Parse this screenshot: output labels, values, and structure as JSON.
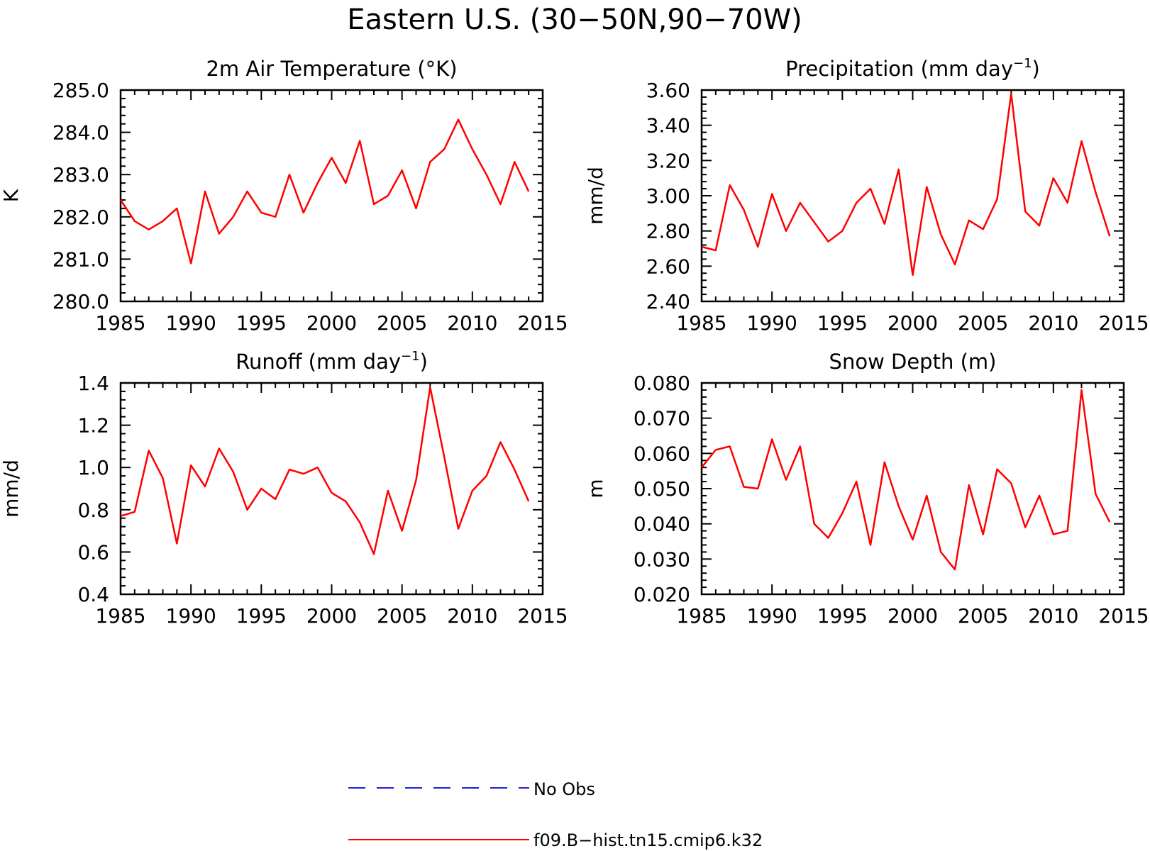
{
  "figure": {
    "title": "Eastern U.S. (30−50N,90−70W)"
  },
  "legend": [
    {
      "label": "No Obs",
      "color": "#1f1fd6",
      "style": "dashed"
    },
    {
      "label": "f09.B−hist.tn15.cmip6.k32",
      "color": "#ff0000",
      "style": "solid"
    }
  ],
  "chart_data": [
    {
      "type": "line",
      "title_main": "2m Air Temperature (°K)",
      "title_sup": "",
      "title_tail": "",
      "ylabel": "K",
      "xlim": [
        1985,
        2015
      ],
      "ylim": [
        280,
        285
      ],
      "x_ticks": [
        1985,
        1990,
        1995,
        2000,
        2005,
        2010,
        2015
      ],
      "y_ticks": [
        "280.0",
        "281.0",
        "282.0",
        "283.0",
        "284.0",
        "285.0"
      ],
      "y_tick_values": [
        280,
        281,
        282,
        283,
        284,
        285
      ],
      "x": [
        1985,
        1986,
        1987,
        1988,
        1989,
        1990,
        1991,
        1992,
        1993,
        1994,
        1995,
        1996,
        1997,
        1998,
        1999,
        2000,
        2001,
        2002,
        2003,
        2004,
        2005,
        2006,
        2007,
        2008,
        2009,
        2010,
        2011,
        2012,
        2013,
        2014
      ],
      "series": [
        {
          "name": "f09.B−hist.tn15.cmip6.k32",
          "color": "#ff0000",
          "values": [
            282.4,
            281.9,
            281.7,
            281.9,
            282.2,
            280.9,
            282.6,
            281.6,
            282.0,
            282.6,
            282.1,
            282.0,
            283.0,
            282.1,
            282.8,
            283.4,
            282.8,
            283.8,
            282.3,
            282.5,
            283.1,
            282.2,
            283.3,
            283.6,
            284.3,
            283.6,
            283.0,
            282.3,
            283.3,
            282.6
          ]
        }
      ]
    },
    {
      "type": "line",
      "title_main": "Precipitation (mm day",
      "title_sup": "−1",
      "title_tail": ")",
      "ylabel": "mm/d",
      "xlim": [
        1985,
        2015
      ],
      "ylim": [
        2.4,
        3.6
      ],
      "x_ticks": [
        1985,
        1990,
        1995,
        2000,
        2005,
        2010,
        2015
      ],
      "y_ticks": [
        "2.40",
        "2.60",
        "2.80",
        "3.00",
        "3.20",
        "3.40",
        "3.60"
      ],
      "y_tick_values": [
        2.4,
        2.6,
        2.8,
        3.0,
        3.2,
        3.4,
        3.6
      ],
      "x": [
        1985,
        1986,
        1987,
        1988,
        1989,
        1990,
        1991,
        1992,
        1993,
        1994,
        1995,
        1996,
        1997,
        1998,
        1999,
        2000,
        2001,
        2002,
        2003,
        2004,
        2005,
        2006,
        2007,
        2008,
        2009,
        2010,
        2011,
        2012,
        2013,
        2014
      ],
      "series": [
        {
          "name": "f09.B−hist.tn15.cmip6.k32",
          "color": "#ff0000",
          "values": [
            2.71,
            2.69,
            3.06,
            2.92,
            2.71,
            3.01,
            2.8,
            2.96,
            2.85,
            2.74,
            2.8,
            2.96,
            3.04,
            2.84,
            3.15,
            2.55,
            3.05,
            2.78,
            2.61,
            2.86,
            2.81,
            2.98,
            3.58,
            2.91,
            2.83,
            3.1,
            2.96,
            3.31,
            3.02,
            2.77
          ]
        }
      ]
    },
    {
      "type": "line",
      "title_main": "Runoff (mm day",
      "title_sup": "−1",
      "title_tail": ")",
      "ylabel": "mm/d",
      "xlim": [
        1985,
        2015
      ],
      "ylim": [
        0.4,
        1.4
      ],
      "x_ticks": [
        1985,
        1990,
        1995,
        2000,
        2005,
        2010,
        2015
      ],
      "y_ticks": [
        "0.4",
        "0.6",
        "0.8",
        "1.0",
        "1.2",
        "1.4"
      ],
      "y_tick_values": [
        0.4,
        0.6,
        0.8,
        1.0,
        1.2,
        1.4
      ],
      "x": [
        1985,
        1986,
        1987,
        1988,
        1989,
        1990,
        1991,
        1992,
        1993,
        1994,
        1995,
        1996,
        1997,
        1998,
        1999,
        2000,
        2001,
        2002,
        2003,
        2004,
        2005,
        2006,
        2007,
        2008,
        2009,
        2010,
        2011,
        2012,
        2013,
        2014
      ],
      "series": [
        {
          "name": "f09.B−hist.tn15.cmip6.k32",
          "color": "#ff0000",
          "values": [
            0.77,
            0.79,
            1.08,
            0.95,
            0.64,
            1.01,
            0.91,
            1.09,
            0.98,
            0.8,
            0.9,
            0.85,
            0.99,
            0.97,
            1.0,
            0.88,
            0.84,
            0.74,
            0.59,
            0.89,
            0.7,
            0.94,
            1.38,
            1.05,
            0.71,
            0.89,
            0.96,
            1.12,
            0.99,
            0.84
          ]
        }
      ]
    },
    {
      "type": "line",
      "title_main": "Snow Depth (m)",
      "title_sup": "",
      "title_tail": "",
      "ylabel": "m",
      "xlim": [
        1985,
        2015
      ],
      "ylim": [
        0.02,
        0.08
      ],
      "x_ticks": [
        1985,
        1990,
        1995,
        2000,
        2005,
        2010,
        2015
      ],
      "y_ticks": [
        "0.020",
        "0.030",
        "0.040",
        "0.050",
        "0.060",
        "0.070",
        "0.080"
      ],
      "y_tick_values": [
        0.02,
        0.03,
        0.04,
        0.05,
        0.06,
        0.07,
        0.08
      ],
      "x": [
        1985,
        1986,
        1987,
        1988,
        1989,
        1990,
        1991,
        1992,
        1993,
        1994,
        1995,
        1996,
        1997,
        1998,
        1999,
        2000,
        2001,
        2002,
        2003,
        2004,
        2005,
        2006,
        2007,
        2008,
        2009,
        2010,
        2011,
        2012,
        2013,
        2014
      ],
      "series": [
        {
          "name": "f09.B−hist.tn15.cmip6.k32",
          "color": "#ff0000",
          "values": [
            0.056,
            0.061,
            0.062,
            0.0505,
            0.05,
            0.064,
            0.0525,
            0.062,
            0.04,
            0.036,
            0.043,
            0.052,
            0.034,
            0.0575,
            0.045,
            0.0355,
            0.048,
            0.032,
            0.027,
            0.051,
            0.037,
            0.0555,
            0.0515,
            0.039,
            0.048,
            0.037,
            0.038,
            0.078,
            0.0485,
            0.0405
          ]
        }
      ]
    }
  ]
}
